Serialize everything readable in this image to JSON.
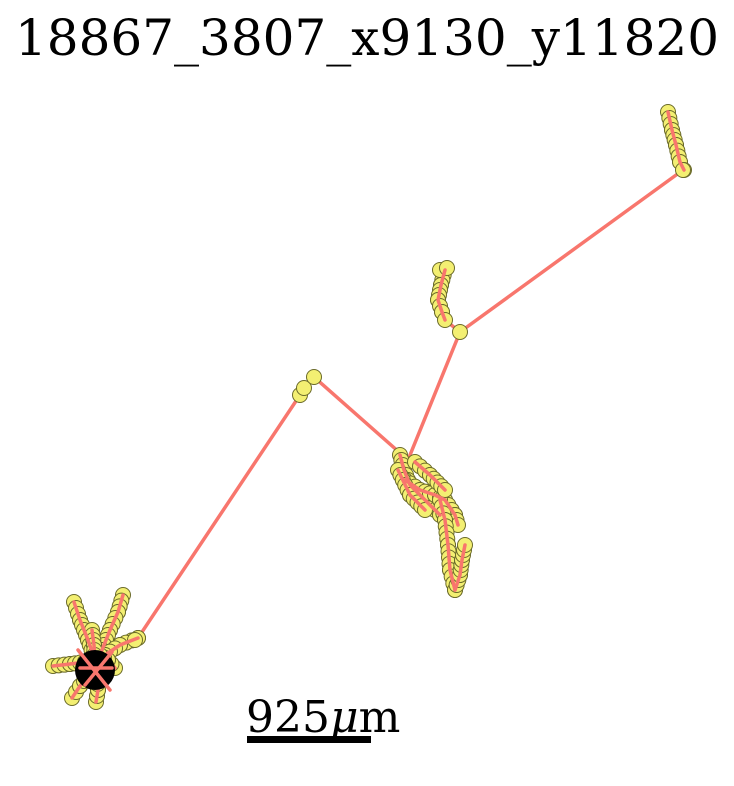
{
  "title": "18867_3807_x9130_y11820",
  "scale": {
    "value": "925",
    "unit_symbol": "μ",
    "unit_suffix": "m"
  },
  "colors": {
    "edge": "#f8766d",
    "node_fill": "#f3ef72",
    "node_stroke": "#6b6b2a",
    "soma": "#000000"
  },
  "icon": "neuron-skeleton"
}
